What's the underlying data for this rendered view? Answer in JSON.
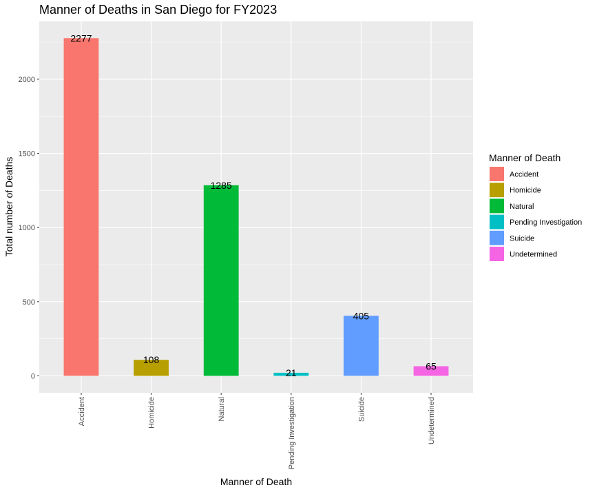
{
  "chart_data": {
    "type": "bar",
    "title": "Manner of Deaths in San Diego for FY2023",
    "xlabel": "Manner of Death",
    "ylabel": "Total number of Deaths",
    "categories": [
      "Accident",
      "Homicide",
      "Natural",
      "Pending Investigation",
      "Suicide",
      "Undetermined"
    ],
    "values": [
      2277,
      108,
      1285,
      21,
      405,
      65
    ],
    "data_labels": [
      "2277",
      "108",
      "1285",
      "21",
      "405",
      "65"
    ],
    "colors": [
      "#F8766D",
      "#B79F00",
      "#00BA38",
      "#00BFC4",
      "#619CFF",
      "#F564E3"
    ],
    "ylim": [
      -114,
      2390
    ],
    "yticks": [
      0,
      500,
      1000,
      1500,
      2000
    ],
    "ytick_labels": [
      "0",
      "500",
      "1000",
      "1500",
      "2000"
    ],
    "grid": true,
    "legend": {
      "title": "Manner of Death",
      "position": "right",
      "entries": [
        "Accident",
        "Homicide",
        "Natural",
        "Pending Investigation",
        "Suicide",
        "Undetermined"
      ]
    }
  }
}
